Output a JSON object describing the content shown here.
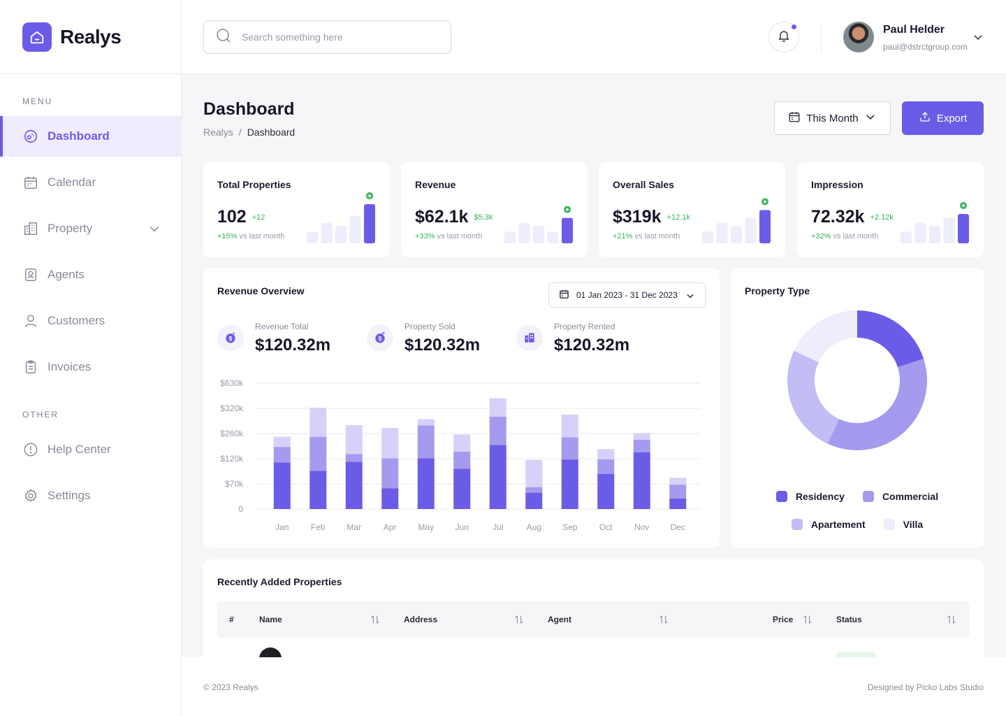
{
  "brand": {
    "name": "Realys"
  },
  "sidebar": {
    "menu_label": "MENU",
    "other_label": "OTHER",
    "items": [
      {
        "label": "Dashboard",
        "icon": "dashboard-icon",
        "active": true
      },
      {
        "label": "Calendar",
        "icon": "calendar-icon"
      },
      {
        "label": "Property",
        "icon": "building-icon",
        "has_children": true
      },
      {
        "label": "Agents",
        "icon": "agent-badge-icon"
      },
      {
        "label": "Customers",
        "icon": "user-icon"
      },
      {
        "label": "Invoices",
        "icon": "clipboard-icon"
      }
    ],
    "other_items": [
      {
        "label": "Help Center",
        "icon": "info-icon"
      },
      {
        "label": "Settings",
        "icon": "gear-icon"
      }
    ]
  },
  "header": {
    "search_placeholder": "Search something here",
    "user_name": "Paul Helder",
    "user_email": "paul@dstrctgroup.com",
    "has_notification": true
  },
  "page": {
    "title": "Dashboard",
    "breadcrumb": [
      "Realys",
      "Dashboard"
    ],
    "period_label": "This Month",
    "export_label": "Export"
  },
  "stats": [
    {
      "title": "Total Properties",
      "value": "102",
      "delta": "+12",
      "pct": "+15%",
      "sub": "vs last month",
      "bars": [
        0.3,
        0.52,
        0.44,
        0.7,
        1.0
      ]
    },
    {
      "title": "Revenue",
      "value": "$62.1k",
      "delta": "$5.3k",
      "pct": "+33%",
      "sub": "vs last month",
      "bars": [
        0.3,
        0.52,
        0.44,
        0.3,
        0.65
      ]
    },
    {
      "title": "Overall Sales",
      "value": "$319k",
      "delta": "+12.1k",
      "pct": "+21%",
      "sub": "vs last month",
      "bars": [
        0.3,
        0.52,
        0.44,
        0.65,
        0.85
      ]
    },
    {
      "title": "Impression",
      "value": "72.32k",
      "delta": "+2.12k",
      "pct": "+32%",
      "sub": "vs last month",
      "bars": [
        0.3,
        0.52,
        0.44,
        0.65,
        0.75
      ]
    }
  ],
  "revenue_overview": {
    "title": "Revenue Overview",
    "date_range": "01 Jan 2023 - 31 Dec 2023",
    "kpis": [
      {
        "label": "Revenue Total",
        "value": "$120.32m",
        "icon": "coin-icon"
      },
      {
        "label": "Property Sold",
        "value": "$120.32m",
        "icon": "coin-arrow-icon"
      },
      {
        "label": "Property Rented",
        "value": "$120.32m",
        "icon": "building-small-icon"
      }
    ]
  },
  "chart_data": [
    {
      "type": "bar",
      "stacked": true,
      "title": "Revenue Overview",
      "categories": [
        "Jan",
        "Feb",
        "Mar",
        "Apr",
        "May",
        "Jun",
        "Jul",
        "Aug",
        "Sep",
        "Oct",
        "Nov",
        "Dec"
      ],
      "y_tick_labels": [
        "0",
        "$70k",
        "$120k",
        "$260k",
        "$320k",
        "$630k"
      ],
      "y_tick_levels": [
        0,
        1,
        2,
        3,
        4,
        5
      ],
      "ylim": [
        0,
        5
      ],
      "grid": true,
      "series": [
        {
          "values": [
            1.85,
            1.52,
            1.88,
            0.82,
            2.02,
            1.6,
            2.55,
            0.65,
            1.97,
            1.4,
            2.25,
            0.42
          ]
        },
        {
          "values": [
            0.62,
            1.35,
            0.3,
            1.2,
            1.3,
            0.68,
            1.12,
            0.22,
            0.88,
            0.58,
            0.5,
            0.55
          ]
        },
        {
          "values": [
            0.4,
            1.15,
            1.15,
            1.2,
            0.25,
            0.68,
            0.73,
            1.08,
            0.9,
            0.4,
            0.27,
            0.27
          ]
        }
      ],
      "colors": [
        "#6b5ce7",
        "#a49bef",
        "#d5d1f8"
      ]
    },
    {
      "type": "pie",
      "title": "Property Type",
      "categories": [
        "Residency",
        "Commercial",
        "Apartement",
        "Villa"
      ],
      "values": [
        20,
        37,
        25,
        18
      ],
      "colors": [
        "#6b5ce7",
        "#a49bef",
        "#c3bdf5",
        "#eeedfb"
      ]
    }
  ],
  "table": {
    "title": "Recently Added Properties",
    "columns": [
      "#",
      "Name",
      "Address",
      "Agent",
      "Price",
      "Status"
    ]
  },
  "footer": {
    "copyright": "© 2023 Realys",
    "designed_by": "Designed by Picko Labs Studio"
  }
}
